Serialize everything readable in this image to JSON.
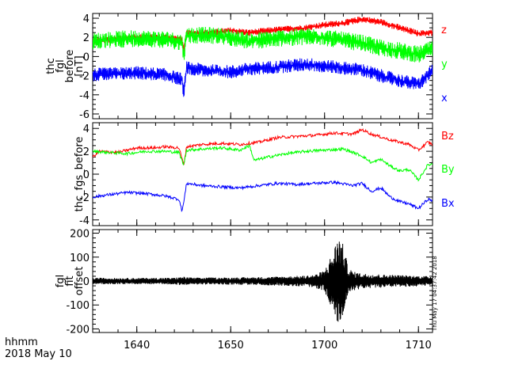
{
  "footer": {
    "time_format": "hhmm",
    "date": "2018 May 10"
  },
  "timestamp": "Thu May 17 04:37:42 2018",
  "x_axis": {
    "ticks": [
      {
        "value": 0,
        "label": "1640"
      },
      {
        "value": 10,
        "label": "1650"
      },
      {
        "value": 20,
        "label": "1700"
      },
      {
        "value": 30,
        "label": "1710"
      }
    ],
    "minor_tick_step": 2,
    "xlim": [
      -4.7,
      31.5
    ]
  },
  "colors": {
    "x": "#0000ff",
    "y": "#00ff00",
    "z": "#ff0000",
    "axis": "#000000",
    "offset": "#000000"
  },
  "chart_data": [
    {
      "type": "line",
      "panel": "top",
      "ylabel_lines": [
        "thc",
        "fgl",
        "before",
        "[nT]"
      ],
      "ylim": [
        -6.5,
        4.5
      ],
      "yticks": [
        -6,
        -4,
        -2,
        0,
        2,
        4
      ],
      "y_minor_step": 0.5,
      "grid": false,
      "legend_placement": "right",
      "series": [
        {
          "name": "z",
          "color": "#ff0000",
          "band": 0.35,
          "points": [
            [
              -4.7,
              1.6
            ],
            [
              -2,
              1.9
            ],
            [
              0,
              2.0
            ],
            [
              3,
              2.0
            ],
            [
              4.8,
              1.8
            ],
            [
              5.0,
              0.6
            ],
            [
              5.3,
              2.4
            ],
            [
              8,
              2.5
            ],
            [
              10,
              2.7
            ],
            [
              12,
              2.5
            ],
            [
              15,
              2.8
            ],
            [
              18,
              3.0
            ],
            [
              20,
              3.3
            ],
            [
              22,
              3.5
            ],
            [
              24,
              3.9
            ],
            [
              26,
              3.6
            ],
            [
              28,
              3.0
            ],
            [
              30,
              2.4
            ],
            [
              31.5,
              2.5
            ]
          ]
        },
        {
          "name": "y",
          "color": "#00ff00",
          "band": 0.9,
          "points": [
            [
              -4.7,
              1.6
            ],
            [
              -2,
              1.8
            ],
            [
              0,
              1.9
            ],
            [
              3,
              1.8
            ],
            [
              4.8,
              1.5
            ],
            [
              5.0,
              0.2
            ],
            [
              5.3,
              2.2
            ],
            [
              8,
              2.2
            ],
            [
              10,
              2.0
            ],
            [
              12,
              1.6
            ],
            [
              15,
              1.9
            ],
            [
              18,
              2.1
            ],
            [
              20,
              2.0
            ],
            [
              22,
              1.7
            ],
            [
              24,
              1.4
            ],
            [
              26,
              0.9
            ],
            [
              28,
              0.6
            ],
            [
              30,
              0.2
            ],
            [
              31.5,
              0.8
            ]
          ]
        },
        {
          "name": "x",
          "color": "#0000ff",
          "band": 0.7,
          "points": [
            [
              -4.7,
              -1.9
            ],
            [
              -2,
              -1.8
            ],
            [
              0,
              -1.7
            ],
            [
              3,
              -1.9
            ],
            [
              4.8,
              -2.4
            ],
            [
              5.0,
              -3.8
            ],
            [
              5.3,
              -1.2
            ],
            [
              8,
              -1.5
            ],
            [
              10,
              -1.6
            ],
            [
              12,
              -1.3
            ],
            [
              15,
              -1.1
            ],
            [
              18,
              -0.8
            ],
            [
              20,
              -1.0
            ],
            [
              22,
              -1.2
            ],
            [
              24,
              -1.4
            ],
            [
              26,
              -2.0
            ],
            [
              28,
              -2.5
            ],
            [
              30,
              -2.9
            ],
            [
              31.5,
              -1.5
            ]
          ]
        }
      ]
    },
    {
      "type": "line",
      "panel": "middle",
      "ylabel_lines": [
        "thc_fgs_before"
      ],
      "ylim": [
        -4.5,
        4.5
      ],
      "yticks": [
        -4,
        -2,
        0,
        2,
        4
      ],
      "y_minor_step": 0.5,
      "grid": false,
      "legend_placement": "right",
      "series": [
        {
          "name": "Bz",
          "color": "#ff0000",
          "points": [
            [
              -4.7,
              1.5
            ],
            [
              -4,
              2.0
            ],
            [
              -2,
              1.9
            ],
            [
              0,
              2.3
            ],
            [
              2,
              2.3
            ],
            [
              3,
              2.4
            ],
            [
              4.5,
              2.3
            ],
            [
              4.8,
              1.4
            ],
            [
              5.0,
              0.8
            ],
            [
              5.3,
              2.4
            ],
            [
              7,
              2.6
            ],
            [
              9,
              2.7
            ],
            [
              11,
              2.6
            ],
            [
              13,
              2.8
            ],
            [
              15,
              3.2
            ],
            [
              17,
              3.3
            ],
            [
              19,
              3.4
            ],
            [
              21,
              3.6
            ],
            [
              23,
              3.5
            ],
            [
              24,
              3.9
            ],
            [
              25,
              3.5
            ],
            [
              27,
              3.0
            ],
            [
              29,
              2.6
            ],
            [
              30,
              2.1
            ],
            [
              31,
              2.8
            ],
            [
              31.5,
              2.6
            ]
          ]
        },
        {
          "name": "By",
          "color": "#00ff00",
          "points": [
            [
              -4.7,
              2.0
            ],
            [
              -3,
              1.9
            ],
            [
              -1,
              1.8
            ],
            [
              1,
              2.0
            ],
            [
              3,
              2.0
            ],
            [
              4.5,
              1.9
            ],
            [
              4.8,
              1.2
            ],
            [
              5.0,
              0.8
            ],
            [
              5.3,
              2.1
            ],
            [
              7,
              2.2
            ],
            [
              9,
              2.3
            ],
            [
              11,
              2.1
            ],
            [
              12,
              2.5
            ],
            [
              12.5,
              1.2
            ],
            [
              14,
              1.5
            ],
            [
              16,
              1.8
            ],
            [
              18,
              2.0
            ],
            [
              20,
              2.1
            ],
            [
              22,
              2.2
            ],
            [
              24,
              1.6
            ],
            [
              25,
              1.0
            ],
            [
              26,
              1.3
            ],
            [
              27,
              0.7
            ],
            [
              28,
              0.3
            ],
            [
              29,
              0.4
            ],
            [
              30,
              -0.5
            ],
            [
              31,
              0.8
            ],
            [
              31.5,
              0.9
            ]
          ]
        },
        {
          "name": "Bx",
          "color": "#0000ff",
          "points": [
            [
              -4.7,
              -2.0
            ],
            [
              -3,
              -1.8
            ],
            [
              -1,
              -1.6
            ],
            [
              1,
              -1.7
            ],
            [
              3,
              -1.9
            ],
            [
              4.5,
              -2.2
            ],
            [
              4.8,
              -3.2
            ],
            [
              5.0,
              -2.5
            ],
            [
              5.3,
              -0.8
            ],
            [
              7,
              -1.0
            ],
            [
              9,
              -1.1
            ],
            [
              11,
              -1.2
            ],
            [
              13,
              -1.0
            ],
            [
              15,
              -0.8
            ],
            [
              17,
              -0.9
            ],
            [
              19,
              -0.8
            ],
            [
              21,
              -0.7
            ],
            [
              23,
              -1.0
            ],
            [
              24,
              -0.8
            ],
            [
              25,
              -1.5
            ],
            [
              26,
              -1.2
            ],
            [
              27,
              -2.0
            ],
            [
              28,
              -2.4
            ],
            [
              29,
              -2.6
            ],
            [
              30,
              -3.0
            ],
            [
              31,
              -2.2
            ],
            [
              31.5,
              -2.3
            ]
          ]
        }
      ]
    },
    {
      "type": "line",
      "panel": "bottom",
      "ylabel_lines": [
        "fgl",
        "fit",
        "offset"
      ],
      "ylim": [
        -215,
        215
      ],
      "yticks": [
        -200,
        -100,
        0,
        100,
        200
      ],
      "y_minor_step": 20,
      "grid": false,
      "series": [
        {
          "name": "",
          "color": "#000000",
          "envelope": [
            [
              -4.7,
              14
            ],
            [
              -2,
              13
            ],
            [
              0,
              13
            ],
            [
              4,
              14
            ],
            [
              5,
              18
            ],
            [
              6,
              14
            ],
            [
              8,
              15
            ],
            [
              10,
              15
            ],
            [
              12,
              16
            ],
            [
              14,
              18
            ],
            [
              16,
              20
            ],
            [
              18,
              23
            ],
            [
              19,
              28
            ],
            [
              20,
              45
            ],
            [
              20.5,
              90
            ],
            [
              21,
              130
            ],
            [
              21.3,
              180
            ],
            [
              21.6,
              190
            ],
            [
              22,
              150
            ],
            [
              22.5,
              60
            ],
            [
              23,
              40
            ],
            [
              24,
              32
            ],
            [
              26,
              28
            ],
            [
              28,
              25
            ],
            [
              30,
              22
            ],
            [
              31.5,
              20
            ]
          ]
        }
      ]
    }
  ]
}
